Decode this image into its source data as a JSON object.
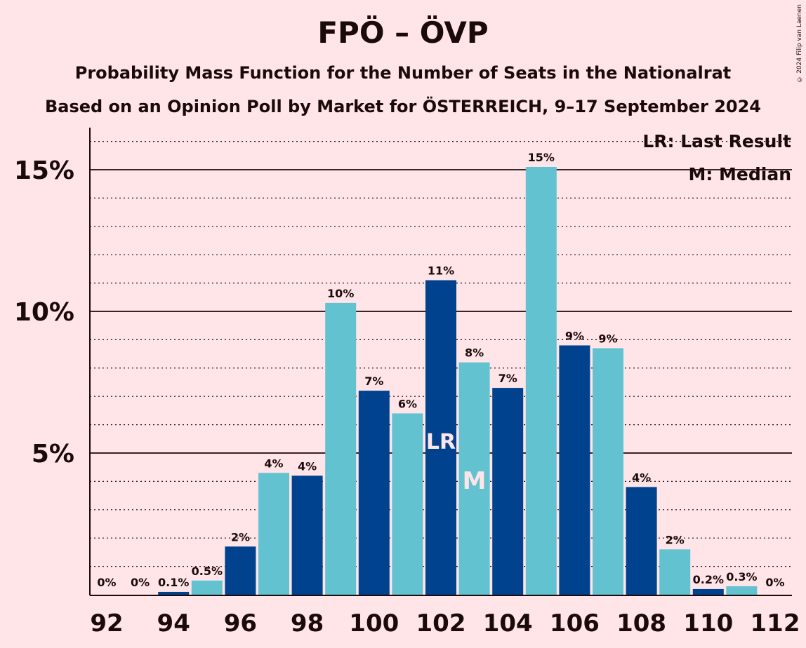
{
  "title": "FPÖ – ÖVP",
  "subtitle_line1": "Probability Mass Function for the Number of Seats in the Nationalrat",
  "subtitle_line2": "Based on an Opinion Poll by Market for ÖSTERREICH, 9–17 September 2024",
  "copyright": "© 2024 Filip van Laenen",
  "legend": {
    "lr": "LR: Last Result",
    "median": "M: Median"
  },
  "colors": {
    "background": "#FFE5E8",
    "dark_bar": "#00428E",
    "light_bar": "#62C2D0",
    "axis": "#1a0a0a"
  },
  "chart_data": {
    "type": "bar",
    "x": [
      92,
      93,
      94,
      95,
      96,
      97,
      98,
      99,
      100,
      101,
      102,
      103,
      104,
      105,
      106,
      107,
      108,
      109,
      110,
      111,
      112
    ],
    "values": [
      0,
      0,
      0.1,
      0.5,
      1.7,
      4.3,
      4.2,
      10.3,
      7.2,
      6.4,
      11.1,
      8.2,
      7.3,
      15.1,
      8.8,
      8.7,
      3.8,
      1.6,
      0.2,
      0.3,
      0
    ],
    "labels": [
      "0%",
      "0%",
      "0.1%",
      "0.5%",
      "2%",
      "4%",
      "4%",
      "10%",
      "7%",
      "6%",
      "11%",
      "8%",
      "7%",
      "15%",
      "9%",
      "9%",
      "4%",
      "2%",
      "0.2%",
      "0.3%",
      "0%"
    ],
    "x_tick_labels": [
      "92",
      "94",
      "96",
      "98",
      "100",
      "102",
      "104",
      "106",
      "108",
      "110",
      "112"
    ],
    "y_tick_labels": [
      "5%",
      "10%",
      "15%"
    ],
    "y_ticks": [
      5,
      10,
      15
    ],
    "ylim": [
      0,
      16.5
    ],
    "last_result": 102,
    "last_result_label": "LR",
    "median": 103,
    "median_label": "M"
  }
}
